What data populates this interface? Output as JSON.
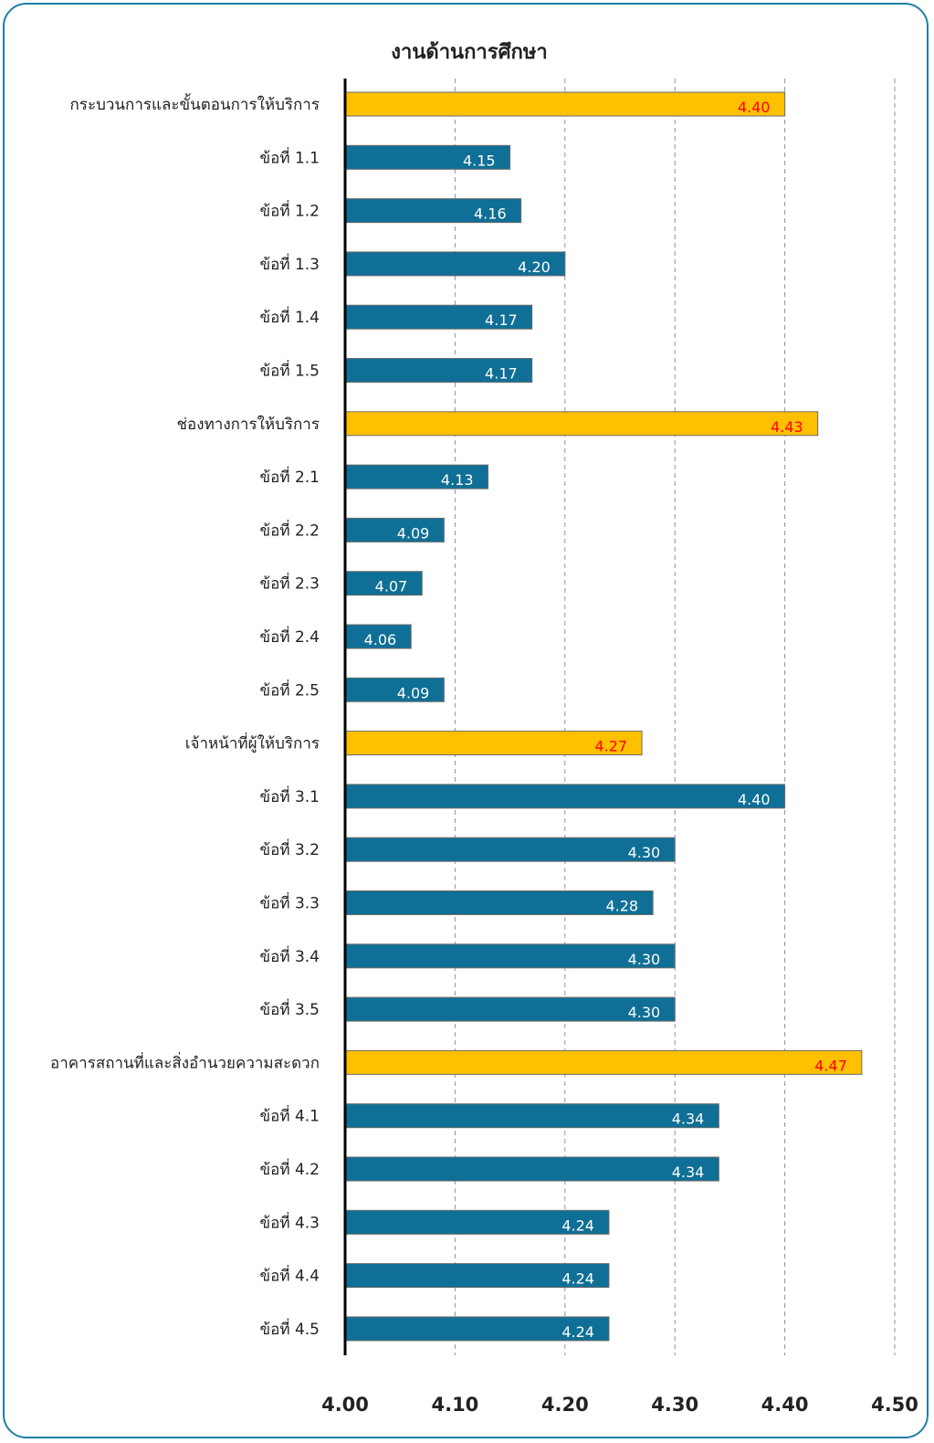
{
  "colors": {
    "group_bar": "#ffc000",
    "item_bar": "#0f6f96",
    "group_label": "#ff0000",
    "item_label": "#ffffff",
    "frame": "#1f7fa3",
    "gridline": "#8a8fb5"
  },
  "chart_data": {
    "type": "bar",
    "orientation": "horizontal",
    "title": "งานด้านการศึกษา",
    "xlim": [
      4.0,
      4.5
    ],
    "ticks": [
      "4.00",
      "4.10",
      "4.20",
      "4.30",
      "4.40",
      "4.50"
    ],
    "grid": true,
    "categories": [
      "กระบวนการและขั้นตอนการให้บริการ",
      "ข้อที่ 1.1",
      "ข้อที่ 1.2",
      "ข้อที่ 1.3",
      "ข้อที่ 1.4",
      "ข้อที่ 1.5",
      "ช่องทางการให้บริการ",
      "ข้อที่ 2.1",
      "ข้อที่ 2.2",
      "ข้อที่ 2.3",
      "ข้อที่ 2.4",
      "ข้อที่ 2.5",
      "เจ้าหน้าที่ผู้ให้บริการ",
      "ข้อที่ 3.1",
      "ข้อที่ 3.2",
      "ข้อที่ 3.3",
      "ข้อที่ 3.4",
      "ข้อที่ 3.5",
      "อาคารสถานที่และสิ่งอำนวยความสะดวก",
      "ข้อที่ 4.1",
      "ข้อที่ 4.2",
      "ข้อที่ 4.3",
      "ข้อที่ 4.4",
      "ข้อที่ 4.5"
    ],
    "values": [
      4.4,
      4.15,
      4.16,
      4.2,
      4.17,
      4.17,
      4.43,
      4.13,
      4.09,
      4.07,
      4.06,
      4.09,
      4.27,
      4.4,
      4.3,
      4.28,
      4.3,
      4.3,
      4.47,
      4.34,
      4.34,
      4.24,
      4.24,
      4.24
    ],
    "value_labels": [
      "4.40",
      "4.15",
      "4.16",
      "4.20",
      "4.17",
      "4.17",
      "4.43",
      "4.13",
      "4.09",
      "4.07",
      "4.06",
      "4.09",
      "4.27",
      "4.40",
      "4.30",
      "4.28",
      "4.30",
      "4.30",
      "4.47",
      "4.34",
      "4.34",
      "4.24",
      "4.24",
      "4.24"
    ],
    "is_group": [
      true,
      false,
      false,
      false,
      false,
      false,
      true,
      false,
      false,
      false,
      false,
      false,
      true,
      false,
      false,
      false,
      false,
      false,
      true,
      false,
      false,
      false,
      false,
      false
    ]
  }
}
